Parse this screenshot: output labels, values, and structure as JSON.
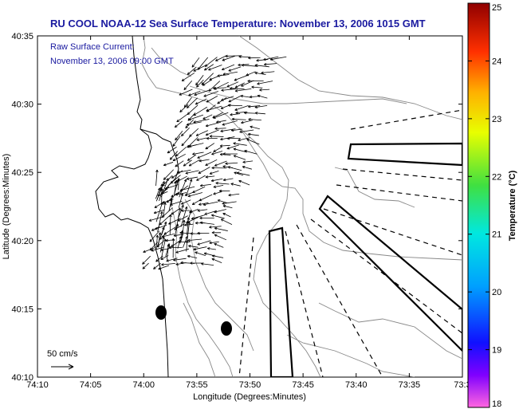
{
  "title": "RU COOL  NOAA-12  Sea Surface Temperature:  November 13, 2006 1015 GMT",
  "current_info": {
    "line1": "Raw Surface Current:",
    "line2": "November 13, 2006 09:00 GMT"
  },
  "axes": {
    "xlabel": "Longitude (Degrees:Minutes)",
    "ylabel": "Latitude (Degrees:Minutes)",
    "x_ticks": [
      "74:10",
      "74:05",
      "74:00",
      "73:55",
      "73:50",
      "73:45",
      "73:40",
      "73:35",
      "73:3"
    ],
    "y_ticks": [
      "40:35",
      "40:30",
      "40:25",
      "40:20",
      "40:15",
      "40:10"
    ]
  },
  "scale_label": "50 cm/s",
  "colorbar": {
    "label": "Temperature (°C)",
    "min": 18,
    "max": 25,
    "ticks": [
      "25",
      "24",
      "23",
      "22",
      "21",
      "20",
      "19",
      "18"
    ]
  },
  "chart_data": {
    "type": "map",
    "title": "RU COOL  NOAA-12  Sea Surface Temperature:  November 13, 2006 1015 GMT",
    "xlabel": "Longitude (Degrees:Minutes)",
    "ylabel": "Latitude (Degrees:Minutes)",
    "xlim": [
      "74:10",
      "73:30"
    ],
    "ylim": [
      "40:10",
      "40:35"
    ],
    "colorbar_range": [
      18,
      25
    ]
  }
}
